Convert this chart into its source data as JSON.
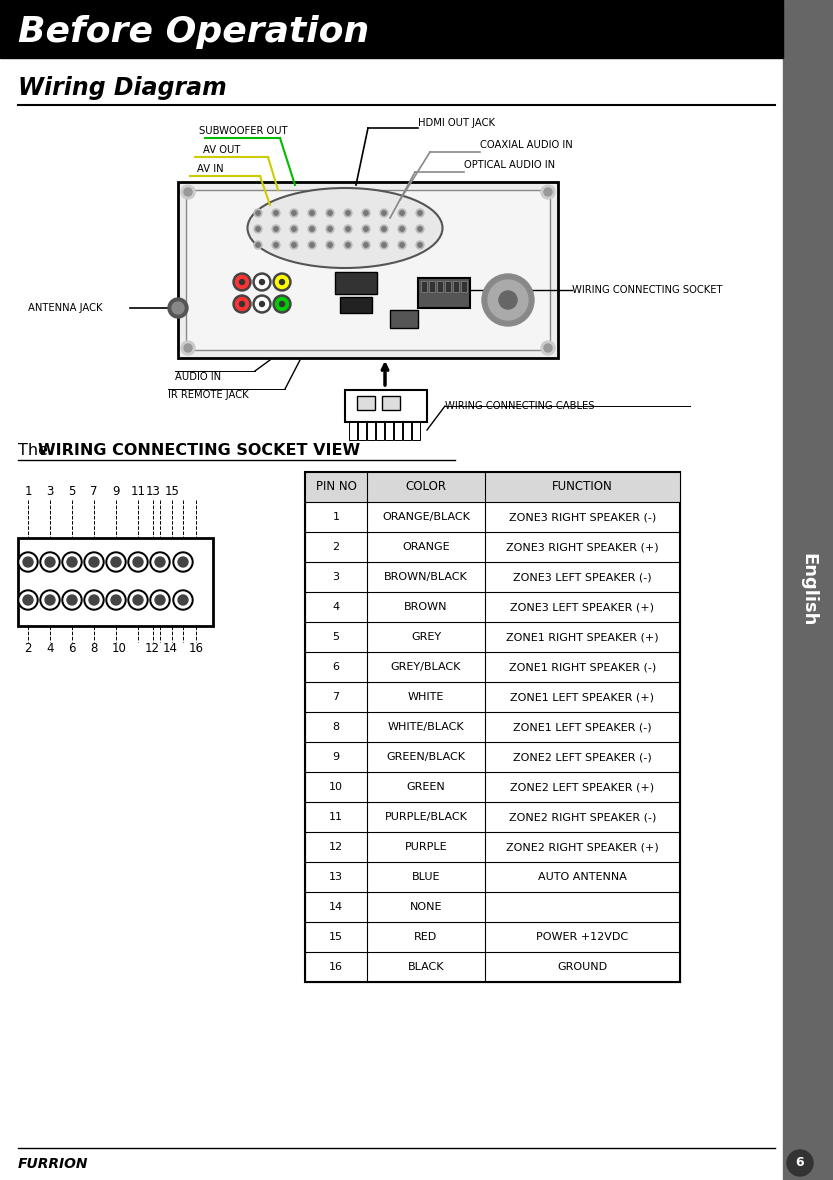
{
  "title": "Before Operation",
  "section_title": "Wiring Diagram",
  "table_title_normal": "The ",
  "table_title_bold": "WIRING CONNECTING SOCKET VIEW",
  "english_sidebar": "English",
  "page_number": "6",
  "brand": "FURRION",
  "table_headers": [
    "PIN NO",
    "COLOR",
    "FUNCTION"
  ],
  "table_data": [
    [
      "1",
      "ORANGE/BLACK",
      "ZONE3 RIGHT SPEAKER (-)"
    ],
    [
      "2",
      "ORANGE",
      "ZONE3 RIGHT SPEAKER (+)"
    ],
    [
      "3",
      "BROWN/BLACK",
      "ZONE3 LEFT SPEAKER (-)"
    ],
    [
      "4",
      "BROWN",
      "ZONE3 LEFT SPEAKER (+)"
    ],
    [
      "5",
      "GREY",
      "ZONE1 RIGHT SPEAKER (+)"
    ],
    [
      "6",
      "GREY/BLACK",
      "ZONE1 RIGHT SPEAKER (-)"
    ],
    [
      "7",
      "WHITE",
      "ZONE1 LEFT SPEAKER (+)"
    ],
    [
      "8",
      "WHITE/BLACK",
      "ZONE1 LEFT SPEAKER (-)"
    ],
    [
      "9",
      "GREEN/BLACK",
      "ZONE2 LEFT SPEAKER (-)"
    ],
    [
      "10",
      "GREEN",
      "ZONE2 LEFT SPEAKER (+)"
    ],
    [
      "11",
      "PURPLE/BLACK",
      "ZONE2 RIGHT SPEAKER (-)"
    ],
    [
      "12",
      "PURPLE",
      "ZONE2 RIGHT SPEAKER (+)"
    ],
    [
      "13",
      "BLUE",
      "AUTO ANTENNA"
    ],
    [
      "14",
      "NONE",
      ""
    ],
    [
      "15",
      "RED",
      "POWER +12VDC"
    ],
    [
      "16",
      "BLACK",
      "GROUND"
    ]
  ],
  "sidebar_bg": "#666666",
  "subwoofer_line_color": "#00bb00",
  "av_line_color": "#cccc00"
}
